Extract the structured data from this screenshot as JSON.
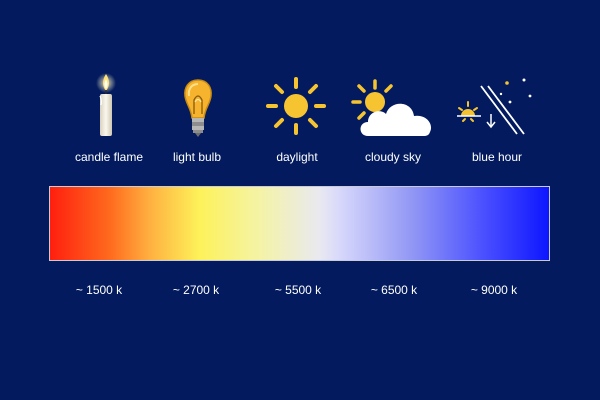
{
  "items": [
    {
      "label": "candle flame",
      "icon": "candle-flame-icon",
      "temperature": "~ 1500 k"
    },
    {
      "label": "light bulb",
      "icon": "light-bulb-icon",
      "temperature": "~ 2700 k"
    },
    {
      "label": "daylight",
      "icon": "sun-icon",
      "temperature": "~ 5500 k"
    },
    {
      "label": "cloudy sky",
      "icon": "sun-cloud-icon",
      "temperature": "~ 6500 k"
    },
    {
      "label": "blue hour",
      "icon": "moon-stars-sunset-icon",
      "temperature": "~ 9000 k"
    }
  ],
  "colors": {
    "background": "#031b5e",
    "sun": "#f7c431",
    "spectrum_warm": "#ff1f0f",
    "spectrum_neutral": "#e9e9f0",
    "spectrum_cool": "#0d16ff"
  }
}
